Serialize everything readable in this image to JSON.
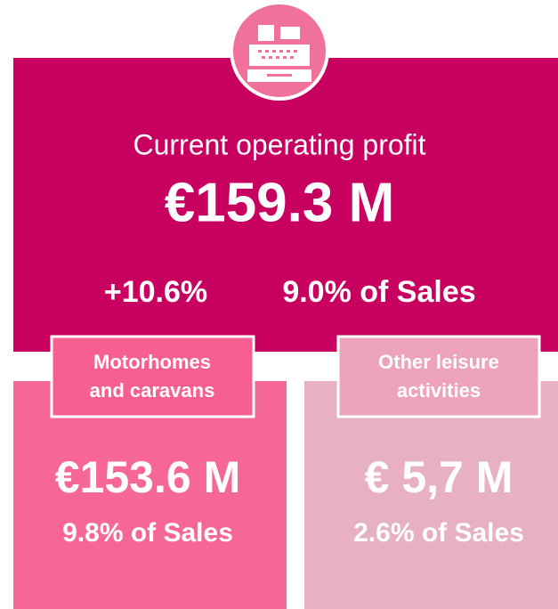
{
  "header": {
    "title": "Current operating profit",
    "value": "€159.3 M",
    "growth": "+10.6%",
    "share": "9.0% of Sales"
  },
  "segments": [
    {
      "label_lines": [
        "Motorhomes",
        "and caravans"
      ],
      "value": "€153.6 M",
      "share": "9.8% of Sales"
    },
    {
      "label_lines": [
        "Other leisure",
        "activities"
      ],
      "value": "€ 5,7 M",
      "share": "2.6% of Sales"
    }
  ]
}
